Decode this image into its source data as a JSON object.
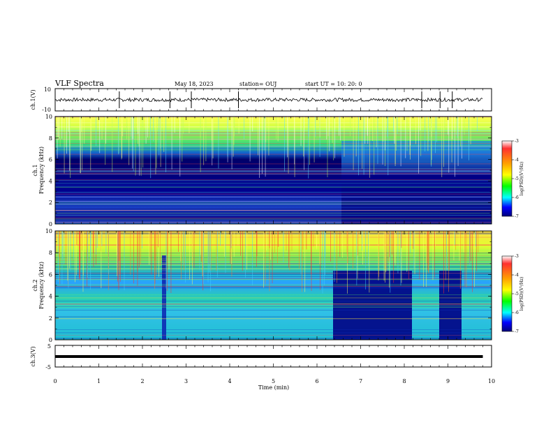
{
  "header": {
    "title": "VLF Spectra",
    "date": "May 18, 2023",
    "station": "station= OUJ",
    "start": "start  UT  =   10: 20: 0"
  },
  "chart_data": [
    {
      "type": "line",
      "panel": "ch1-waveform",
      "ylabel": "ch.1(V)",
      "ylim": [
        -10,
        10
      ],
      "yticks": [
        "10",
        "-10"
      ],
      "x": [
        0,
        1,
        2,
        3,
        4,
        5,
        6,
        7,
        8,
        9,
        9.8
      ],
      "series": [
        {
          "values": [
            0,
            0,
            0,
            0,
            0,
            0,
            0,
            0,
            0,
            0,
            0
          ]
        }
      ],
      "spikes_min": [
        1.47,
        2.63,
        3.12,
        4.2,
        8.4,
        8.82,
        9.1
      ]
    },
    {
      "type": "heatmap",
      "panel": "ch1-spectrogram",
      "ylabel": "Frequency (kHz)",
      "channel_label": "ch.1",
      "xlim": [
        0,
        9.8
      ],
      "ylim": [
        0,
        10
      ],
      "yticks": [
        "0",
        "2",
        "4",
        "6",
        "8",
        "10"
      ],
      "colorbar": {
        "label": "log(PSD)(V²/Hz)",
        "ticks": [
          "-3",
          "-4",
          "-5",
          "-6",
          "-7"
        ],
        "range": [
          -7,
          -3
        ]
      },
      "colors": [
        "#00008b",
        "#0000ff",
        "#00ffff",
        "#00ff00",
        "#ffff00",
        "#ff0000",
        "#ffffff"
      ],
      "features": {
        "dark_band_khz": [
          3,
          6
        ],
        "band_rise_min": 6.5
      }
    },
    {
      "type": "heatmap",
      "panel": "ch2-spectrogram",
      "ylabel": "Frequency (kHz)",
      "channel_label": "ch.2",
      "xlim": [
        0,
        9.8
      ],
      "ylim": [
        0,
        10
      ],
      "yticks": [
        "0",
        "2",
        "4",
        "6",
        "8",
        "10"
      ],
      "colorbar": {
        "label": "log(PSD)(V²/Hz)",
        "ticks": [
          "-3",
          "-4",
          "-5",
          "-6",
          "-7"
        ],
        "range": [
          -7,
          -3
        ]
      },
      "features": {
        "dark_blocks_min": [
          [
            6.4,
            8.2
          ],
          [
            8.8,
            9.3
          ]
        ],
        "dark_block_top_khz": 6.2,
        "spike_min": 2.55
      }
    },
    {
      "type": "line",
      "panel": "ch3-waveform",
      "ylabel": "ch.3(V)",
      "ylim": [
        -5,
        5
      ],
      "yticks": [
        "5",
        "-5"
      ],
      "x": [
        0,
        9.8
      ],
      "series": [
        {
          "values": [
            0,
            0
          ]
        }
      ]
    }
  ],
  "xaxis": {
    "xlabel": "Time  (min)",
    "xlim": [
      0,
      10
    ],
    "ticks": [
      "0",
      "1",
      "2",
      "3",
      "4",
      "5",
      "6",
      "7",
      "8",
      "9",
      "10"
    ]
  }
}
